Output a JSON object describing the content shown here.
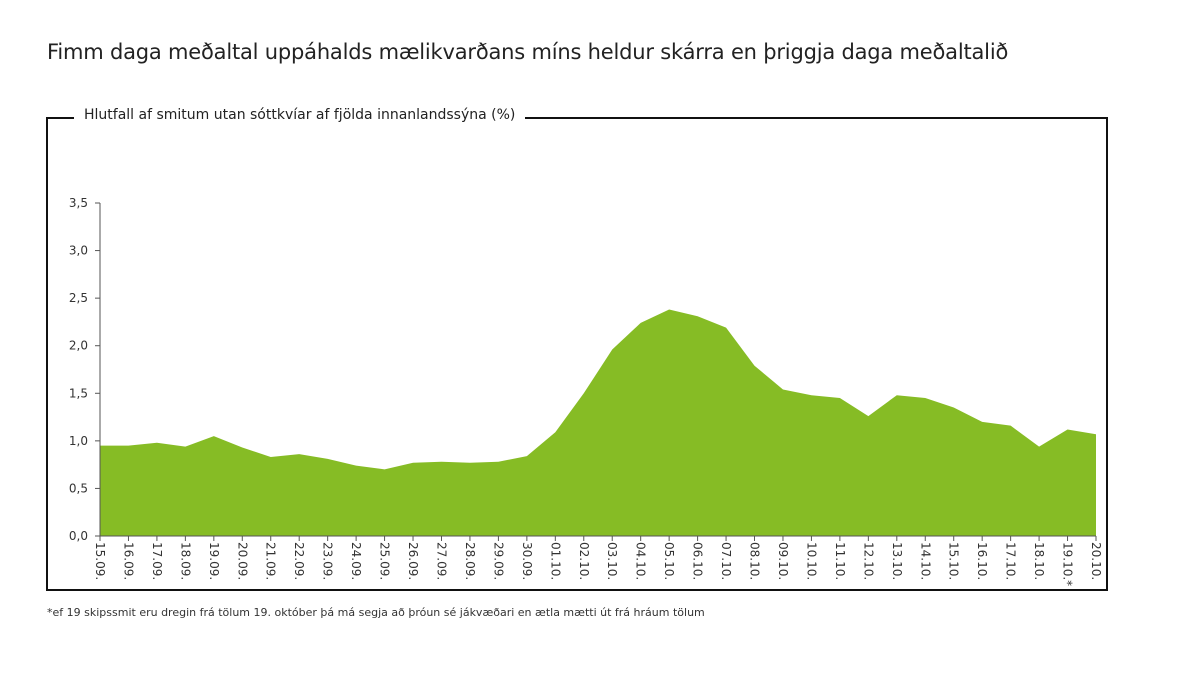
{
  "title": "Fimm daga meðaltal uppáhalds mælikvarðans míns heldur skárra en þriggja daga meðaltalið",
  "footnote": "*ef 19 skipssmit eru dregin frá tölum 19. október þá má segja að þróun sé jákvæðari en ætla mætti út frá hráum tölum",
  "chart_data": {
    "type": "area",
    "title": "Fimm daga meðaltal uppáhalds mælikvarðans míns heldur skárra en þriggja daga meðaltalið",
    "ylabel": "Hlutfall af smitum utan sóttkvíar af fjölda innanlandssýna (%)",
    "xlabel": "",
    "ylim": [
      0,
      3.5
    ],
    "yticks": [
      "0,0",
      "0,5",
      "1,0",
      "1,5",
      "2,0",
      "2,5",
      "3,0",
      "3,5"
    ],
    "ytick_values": [
      0,
      0.5,
      1.0,
      1.5,
      2.0,
      2.5,
      3.0,
      3.5
    ],
    "grid": false,
    "legend": "none",
    "color": "#86bc25",
    "categories": [
      "15.09.",
      "16.09.",
      "17.09.",
      "18.09.",
      "19.09.",
      "20.09.",
      "21.09.",
      "22.09.",
      "23.09.",
      "24.09.",
      "25.09.",
      "26.09.",
      "27.09.",
      "28.09.",
      "29.09.",
      "30.09.",
      "01.10.",
      "02.10.",
      "03.10.",
      "04.10.",
      "05.10.",
      "06.10.",
      "07.10.",
      "08.10.",
      "09.10.",
      "10.10.",
      "11.10.",
      "12.10.",
      "13.10.",
      "14.10.",
      "15.10.",
      "16.10.",
      "17.10.",
      "18.10.",
      "19.10.*",
      "20.10."
    ],
    "series": [
      {
        "values": [
          0.95,
          0.95,
          0.98,
          0.94,
          1.05,
          0.93,
          0.83,
          0.86,
          0.81,
          0.74,
          0.7,
          0.77,
          0.78,
          0.77,
          0.78,
          0.84,
          1.09,
          1.5,
          1.96,
          2.24,
          2.38,
          2.31,
          2.19,
          1.79,
          1.54,
          1.48,
          1.45,
          1.26,
          1.48,
          1.45,
          1.35,
          1.2,
          1.16,
          0.94,
          1.12,
          1.07
        ]
      }
    ]
  }
}
